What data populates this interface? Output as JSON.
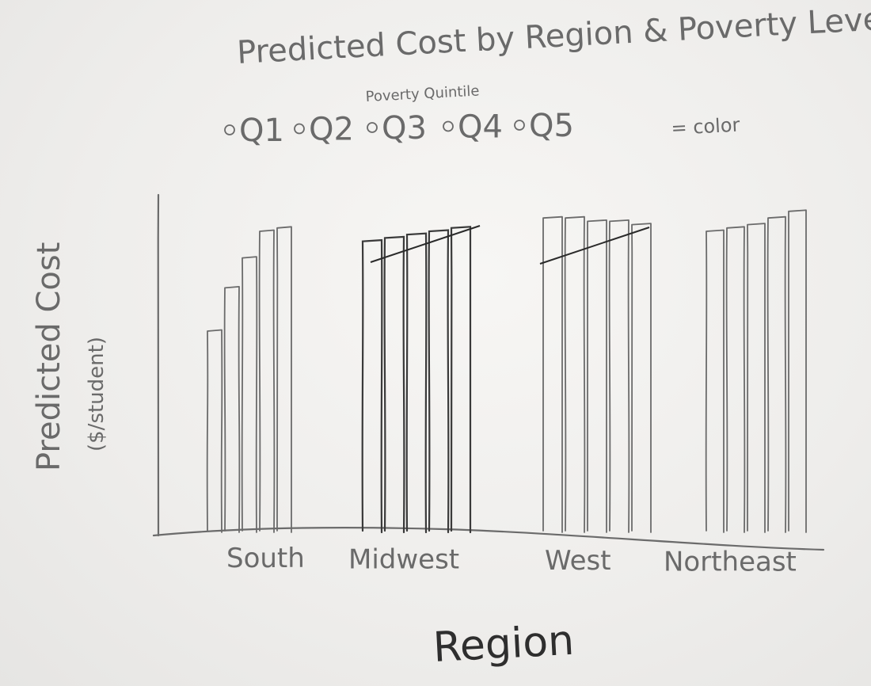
{
  "chart_data": {
    "type": "bar",
    "title": "Predicted Cost by Region & Poverty Level",
    "legend_title": "Poverty Quintile",
    "legend_items": [
      "Q1",
      "Q2",
      "Q3",
      "Q4",
      "Q5"
    ],
    "legend_suffix": "= color",
    "ylabel": "Predicted Cost",
    "ylabel_sub": "($/student)",
    "xlabel": "Region",
    "categories": [
      "South",
      "Midwest",
      "West",
      "Northeast"
    ],
    "series": [
      {
        "name": "Q1",
        "values": [
          60,
          87,
          94,
          90
        ]
      },
      {
        "name": "Q2",
        "values": [
          73,
          88,
          94,
          91
        ]
      },
      {
        "name": "Q3",
        "values": [
          82,
          89,
          93,
          92
        ]
      },
      {
        "name": "Q4",
        "values": [
          90,
          90,
          93,
          94
        ]
      },
      {
        "name": "Q5",
        "values": [
          91,
          91,
          92,
          96
        ]
      }
    ],
    "ylim": [
      0,
      100
    ],
    "grid": false,
    "legend_position": "top"
  },
  "colors": {
    "ink": "#6b6b6b",
    "ink_dark": "#3a3a3a",
    "paper": "#f3f2f0"
  }
}
